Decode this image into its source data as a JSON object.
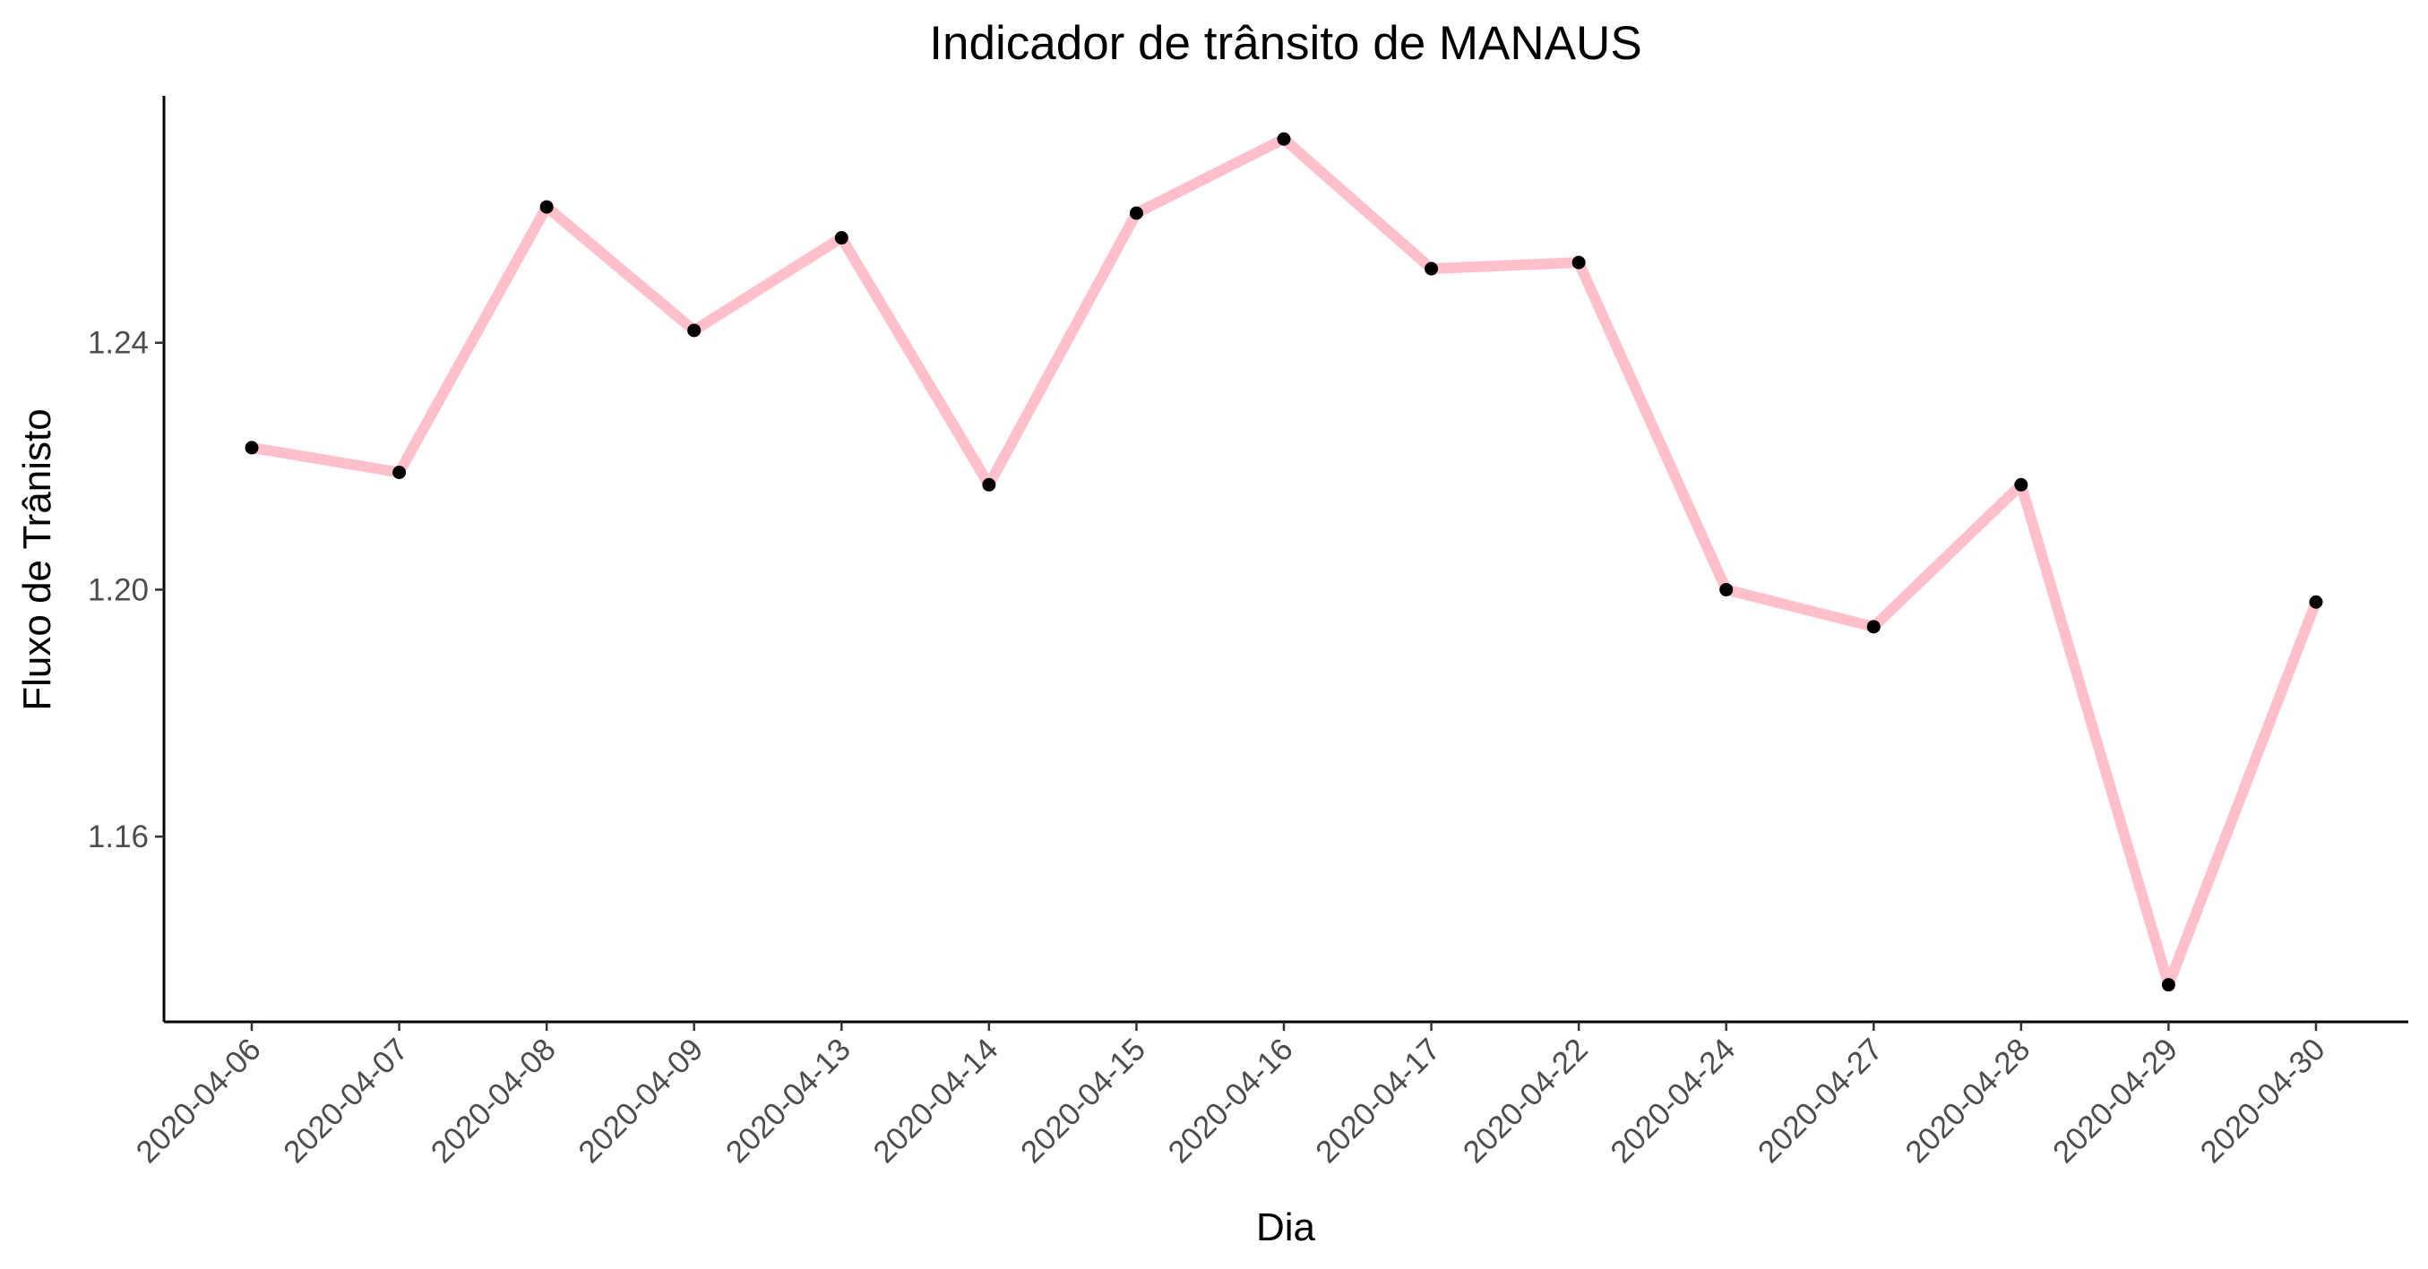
{
  "chart_data": {
    "type": "line",
    "title": "Indicador de trânsito de MANAUS",
    "xlabel": "Dia",
    "ylabel": "Fluxo de Trânisto",
    "x": [
      "2020-04-06",
      "2020-04-07",
      "2020-04-08",
      "2020-04-09",
      "2020-04-13",
      "2020-04-14",
      "2020-04-15",
      "2020-04-16",
      "2020-04-17",
      "2020-04-22",
      "2020-04-24",
      "2020-04-27",
      "2020-04-28",
      "2020-04-29",
      "2020-04-30"
    ],
    "series": [
      {
        "values": [
          1.223,
          1.219,
          1.262,
          1.242,
          1.257,
          1.217,
          1.261,
          1.273,
          1.252,
          1.253,
          1.2,
          1.194,
          1.217,
          1.136,
          1.198
        ]
      }
    ],
    "yticks": [
      1.16,
      1.2,
      1.24
    ],
    "ytick_labels": [
      "1.16",
      "1.20",
      "1.24"
    ],
    "ylim": [
      1.13,
      1.28
    ],
    "line_color": "#FFC0CB",
    "point_color": "#000000",
    "grid": false,
    "legend": "none"
  }
}
